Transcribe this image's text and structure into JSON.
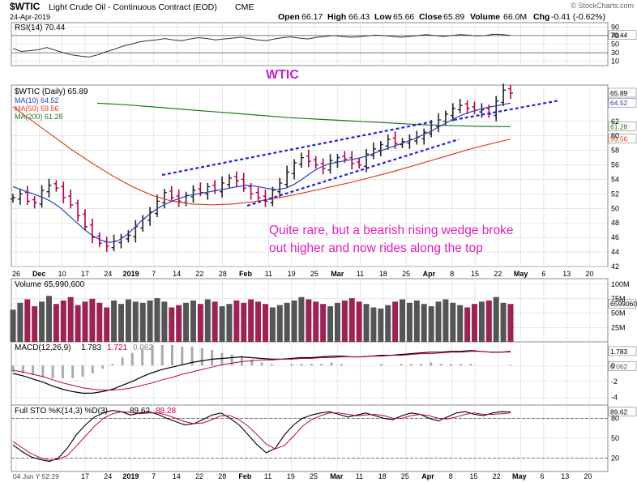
{
  "header": {
    "symbol": "$WTIC",
    "name": "Light Crude Oil - Continuous Contract (EOD)",
    "exchange": "CME",
    "date": "24-Apr-2019",
    "watermark": "© StockCharts.com",
    "open_label": "Open",
    "open": "66.17",
    "high_label": "High",
    "high": "66.43",
    "low_label": "Low",
    "low": "65.66",
    "close_label": "Close",
    "close": "65.89",
    "volume_label": "Volume",
    "volume": "66.0M",
    "chg_label": "Chg",
    "chg": "-0.41 (-0.62%)"
  },
  "annotations": {
    "title": "WTIC",
    "note_line1": "Quite rare, but a bearish rising wedge broke",
    "note_line2": "out higher and now rides along the top"
  },
  "footer": {
    "left_date": "04 Jun Y 52.29"
  },
  "colors": {
    "up": "#222222",
    "down": "#b0004c",
    "ma10": "#2e3fb5",
    "ma50": "#e04020",
    "ma200": "#1f7a1f",
    "annotation": "#e01fbf",
    "wedge": "#2222dd",
    "vol_up": "#555555",
    "vol_down": "#9c2454"
  },
  "chart_data": [
    {
      "type": "line",
      "panel": "rsi",
      "label": "RSI(14) 70.44",
      "last": "70.44",
      "ylim": [
        0,
        100
      ],
      "ticks": [
        "90",
        "70",
        "50",
        "30",
        "10"
      ],
      "levels": [
        70,
        30
      ],
      "series": [
        {
          "name": "RSI(14)",
          "values": [
            40,
            33,
            35,
            37,
            42,
            36,
            30,
            25,
            22,
            20,
            25,
            32,
            38,
            45,
            50,
            55,
            58,
            60,
            63,
            60,
            58,
            62,
            65,
            63,
            60,
            62,
            64,
            66,
            63,
            60,
            58,
            62,
            65,
            67,
            64,
            62,
            66,
            68,
            70,
            68,
            66,
            67,
            69,
            71,
            70,
            68,
            66,
            68,
            70,
            72,
            70,
            68,
            70,
            72,
            71,
            69,
            70,
            73,
            72,
            70.44
          ]
        }
      ]
    },
    {
      "type": "candlestick",
      "panel": "price",
      "title": "$WTIC (Daily) 65.89",
      "ylim": [
        42,
        67
      ],
      "ticks": [
        "62",
        "60",
        "58",
        "56",
        "54",
        "52",
        "50",
        "48",
        "46",
        "44",
        "42"
      ],
      "last_labels": {
        "close": "65.89",
        "ma10": "64.52",
        "ma200": "61.28",
        "ma50": "59.56"
      },
      "legend": [
        "MA(10) 64.52",
        "MA(50) 59.56",
        "MA(200) 61.28"
      ],
      "x_labels": [
        "26",
        "Dec",
        "10",
        "17",
        "24",
        "2019",
        "7",
        "14",
        "22",
        "28",
        "Feb",
        "11",
        "19",
        "25",
        "Mar",
        "11",
        "18",
        "25",
        "Apr",
        "8",
        "15",
        "22",
        "May",
        "6",
        "13",
        "20"
      ],
      "close": [
        51.5,
        52.0,
        51.0,
        50.8,
        52.5,
        53.2,
        52.8,
        51.5,
        50.5,
        49.0,
        47.5,
        46.0,
        45.2,
        44.8,
        45.5,
        46.0,
        46.3,
        47.5,
        48.6,
        49.5,
        51.0,
        52.2,
        51.5,
        51.0,
        51.8,
        52.5,
        52.2,
        53.0,
        52.5,
        53.5,
        54.2,
        53.8,
        52.8,
        52.0,
        51.5,
        51.0,
        52.5,
        53.5,
        55.0,
        56.3,
        57.0,
        56.5,
        56.0,
        55.5,
        56.6,
        57.0,
        56.8,
        56.2,
        56.0,
        57.5,
        58.2,
        58.8,
        59.5,
        59.0,
        59.2,
        59.5,
        59.8,
        60.5,
        61.5,
        62.2,
        63.0,
        63.8,
        64.2,
        63.8,
        63.5,
        63.6,
        63.0,
        64.8,
        66.3,
        65.89
      ],
      "ma10": [
        53.0,
        52.6,
        52.2,
        51.8,
        51.4,
        50.8,
        50.0,
        49.0,
        48.0,
        47.0,
        46.2,
        45.6,
        45.3,
        45.5,
        46.2,
        47.2,
        48.3,
        49.2,
        50.0,
        50.6,
        51.1,
        51.5,
        51.8,
        52.0,
        52.2,
        52.4,
        52.6,
        52.8,
        53.0,
        53.2,
        53.1,
        52.9,
        52.7,
        52.6,
        52.8,
        53.3,
        54.0,
        54.8,
        55.5,
        56.0,
        56.3,
        56.5,
        56.7,
        56.9,
        57.2,
        57.6,
        58.0,
        58.4,
        58.8,
        59.2,
        59.6,
        60.1,
        60.6,
        61.2,
        61.8,
        62.4,
        62.9,
        63.3,
        63.6,
        63.9,
        64.1,
        64.3,
        64.52
      ],
      "ma50": [
        64.0,
        62.0,
        60.0,
        58.0,
        56.2,
        54.5,
        53.0,
        51.8,
        51.0,
        50.6,
        50.5,
        50.6,
        50.9,
        51.3,
        51.8,
        52.4,
        53.0,
        53.6,
        54.3,
        55.0,
        55.8,
        56.6,
        57.4,
        58.2,
        58.9,
        59.56
      ],
      "ma200": [
        64.5,
        64.3,
        64.0,
        63.7,
        63.4,
        63.1,
        62.8,
        62.5,
        62.3,
        62.1,
        61.9,
        61.7,
        61.5,
        61.4,
        61.3,
        61.28
      ],
      "wedge_lines": [
        "upper trendline",
        "lower trendline",
        "breakout trendline"
      ]
    },
    {
      "type": "bar",
      "panel": "volume",
      "label": "Volume 65,990,600",
      "last": "65990600",
      "ylim": [
        0,
        110000000
      ],
      "ticks": [
        "100M",
        "75M",
        "50M",
        "25M"
      ],
      "values": [
        56,
        68,
        74,
        62,
        70,
        80,
        66,
        72,
        78,
        64,
        70,
        75,
        68,
        60,
        72,
        66,
        74,
        70,
        68,
        72,
        76,
        70,
        60,
        64,
        68,
        72,
        66,
        74,
        70,
        62,
        66,
        72,
        68,
        74,
        70,
        66,
        60,
        64,
        68,
        72,
        78,
        74,
        70,
        66,
        62,
        68,
        72,
        76,
        70,
        66,
        60,
        58,
        64,
        70,
        74,
        68,
        72,
        66,
        62,
        70,
        74,
        68,
        64,
        60,
        66,
        70,
        72,
        78,
        68,
        66
      ]
    },
    {
      "type": "line",
      "panel": "macd",
      "label_prefix": "MACD(12,26,9)",
      "macd": "1.783",
      "signal": "1.721",
      "histogram": "0.062",
      "ylim": [
        -5,
        3
      ],
      "ticks": [
        "0",
        "-2",
        "-4"
      ],
      "last_labels": [
        "1.783",
        "0.062"
      ],
      "series": [
        {
          "name": "MACD",
          "values": [
            -1.0,
            -1.3,
            -1.7,
            -2.1,
            -2.6,
            -3.0,
            -3.3,
            -3.5,
            -3.5,
            -3.3,
            -3.0,
            -2.5,
            -2.0,
            -1.4,
            -0.9,
            -0.5,
            -0.2,
            0.1,
            0.4,
            0.6,
            0.8,
            0.9,
            1.0,
            1.1,
            1.0,
            0.9,
            0.8,
            0.8,
            0.9,
            1.0,
            1.0,
            1.1,
            1.2,
            1.2,
            1.1,
            1.1,
            1.2,
            1.3,
            1.3,
            1.4,
            1.5,
            1.6,
            1.7,
            1.7,
            1.8,
            1.8,
            1.9,
            1.8,
            1.7,
            1.7,
            1.783
          ]
        },
        {
          "name": "Signal",
          "values": [
            -0.6,
            -0.8,
            -1.1,
            -1.4,
            -1.8,
            -2.2,
            -2.5,
            -2.8,
            -3.0,
            -3.1,
            -3.1,
            -3.0,
            -2.8,
            -2.5,
            -2.2,
            -1.8,
            -1.5,
            -1.1,
            -0.8,
            -0.5,
            -0.2,
            0.1,
            0.3,
            0.5,
            0.6,
            0.7,
            0.7,
            0.8,
            0.8,
            0.9,
            0.9,
            1.0,
            1.0,
            1.1,
            1.1,
            1.1,
            1.2,
            1.2,
            1.3,
            1.3,
            1.4,
            1.5,
            1.5,
            1.6,
            1.7,
            1.7,
            1.8,
            1.8,
            1.7,
            1.7,
            1.721
          ]
        }
      ]
    },
    {
      "type": "line",
      "panel": "stochastic",
      "label_prefix": "Full STO %K(14,3) %D(3)",
      "k": "89.62",
      "d": "88.28",
      "ylim": [
        0,
        100
      ],
      "ticks": [
        "80",
        "50",
        "20"
      ],
      "last": "89.62",
      "levels": [
        80,
        20
      ],
      "series": [
        {
          "name": "%K",
          "values": [
            40,
            30,
            22,
            18,
            15,
            20,
            35,
            55,
            70,
            82,
            88,
            92,
            90,
            85,
            88,
            90,
            86,
            80,
            75,
            70,
            72,
            78,
            85,
            88,
            80,
            70,
            55,
            40,
            28,
            35,
            55,
            70,
            80,
            85,
            88,
            90,
            86,
            82,
            85,
            88,
            84,
            80,
            78,
            84,
            88,
            86,
            80,
            76,
            82,
            88,
            90,
            86,
            84,
            88,
            90,
            89.62
          ]
        },
        {
          "name": "%D",
          "values": [
            45,
            36,
            27,
            21,
            17,
            18,
            24,
            38,
            53,
            68,
            80,
            87,
            90,
            89,
            87,
            88,
            88,
            85,
            80,
            75,
            72,
            73,
            78,
            84,
            84,
            78,
            68,
            55,
            41,
            34,
            39,
            53,
            68,
            78,
            84,
            88,
            88,
            86,
            84,
            85,
            86,
            84,
            80,
            80,
            84,
            86,
            84,
            80,
            79,
            82,
            86,
            88,
            86,
            86,
            87,
            88.28
          ]
        }
      ]
    },
    {
      "type": "axis",
      "panel": "bottom-axis",
      "x_labels": [
        "17",
        "24",
        "2019",
        "7",
        "14",
        "22",
        "28",
        "Feb",
        "11",
        "19",
        "25",
        "Mar",
        "11",
        "18",
        "25",
        "Apr",
        "8",
        "15",
        "22",
        "May",
        "6",
        "13",
        "20"
      ]
    }
  ]
}
